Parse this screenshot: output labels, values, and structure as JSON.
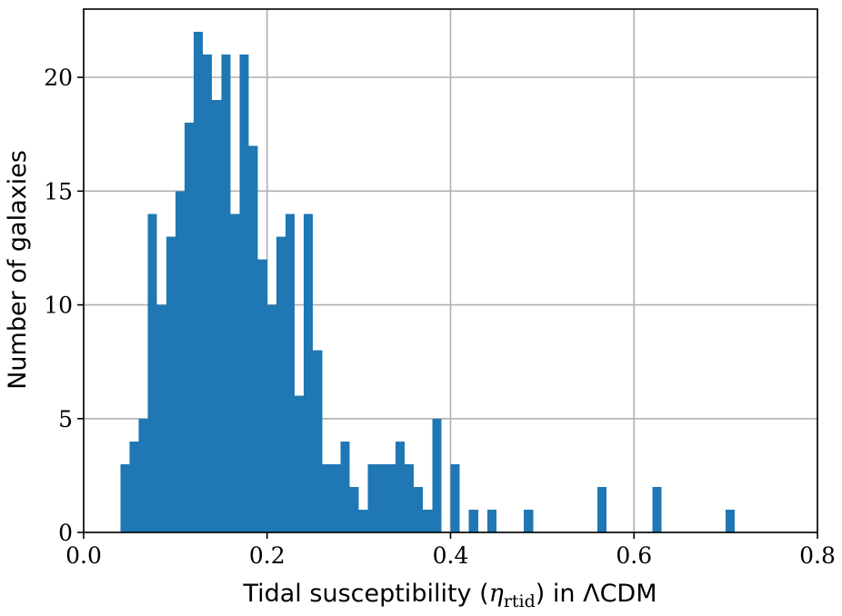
{
  "chart_data": {
    "type": "bar",
    "subtype": "histogram",
    "title": "",
    "xlabel": {
      "prefix": "Tidal susceptibility (",
      "symbol": "η",
      "subscript": "rtid",
      "suffix": ") in ",
      "model": "ΛCDM"
    },
    "ylabel": "Number of galaxies",
    "xlim": [
      0.0,
      0.8
    ],
    "ylim": [
      0,
      23
    ],
    "xticks": [
      "0.0",
      "0.2",
      "0.4",
      "0.6",
      "0.8"
    ],
    "xtick_values": [
      0.0,
      0.2,
      0.4,
      0.6,
      0.8
    ],
    "yticks": [
      "0",
      "5",
      "10",
      "15",
      "20"
    ],
    "ytick_values": [
      0,
      5,
      10,
      15,
      20
    ],
    "grid": true,
    "bar_color": "#1f77b4",
    "bin_width": 0.01,
    "bin_start": 0.04,
    "counts": [
      3,
      4,
      5,
      14,
      10,
      13,
      15,
      18,
      22,
      21,
      19,
      21,
      14,
      21,
      17,
      12,
      10,
      13,
      14,
      6,
      14,
      8,
      3,
      3,
      4,
      2,
      1,
      3,
      3,
      3,
      4,
      3,
      2,
      1,
      5,
      0,
      3,
      0,
      1,
      0,
      1,
      0,
      0,
      0,
      1,
      0,
      0,
      0,
      0,
      0,
      0,
      0,
      2,
      0,
      0,
      0,
      0,
      0,
      2,
      0,
      0,
      0,
      0,
      0,
      0,
      0,
      1
    ]
  }
}
